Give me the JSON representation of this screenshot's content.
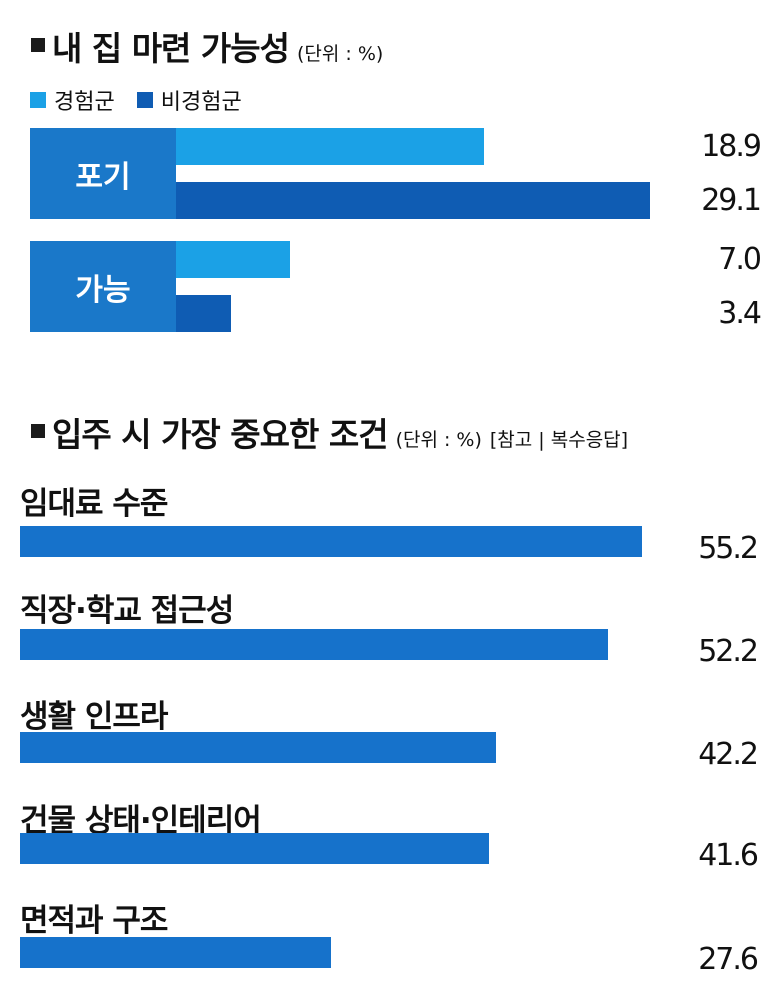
{
  "chart_data": [
    {
      "type": "bar",
      "title": "내 집 마련 가능성",
      "unit": "(단위 : %)",
      "categories": [
        "포기",
        "가능"
      ],
      "series": [
        {
          "name": "경험군",
          "values": [
            18.9,
            7.0
          ],
          "color": "#1ba1e6"
        },
        {
          "name": "비경험군",
          "values": [
            29.1,
            3.4
          ],
          "color": "#0f5cb3"
        }
      ],
      "value_labels": [
        [
          "18.9",
          "29.1"
        ],
        [
          "7.0",
          "3.4"
        ]
      ],
      "category_box_color": "#1a78c9",
      "xlim": [
        0,
        35
      ],
      "legend_position": "top-left",
      "grid": false
    },
    {
      "type": "bar",
      "title": "입주 시 가장 중요한 조건",
      "unit": "(단위 : %)",
      "note": "[참고 | 복수응답]",
      "categories": [
        "임대료 수준",
        "직장·학교 접근성",
        "생활 인프라",
        "건물 상태·인테리어",
        "면적과 구조"
      ],
      "values": [
        55.2,
        52.2,
        42.2,
        41.6,
        27.6
      ],
      "value_labels": [
        "55.2",
        "52.2",
        "42.2",
        "41.6",
        "27.6"
      ],
      "bar_color": "#1672cb",
      "xlim": [
        0,
        60
      ],
      "grid": false
    }
  ]
}
